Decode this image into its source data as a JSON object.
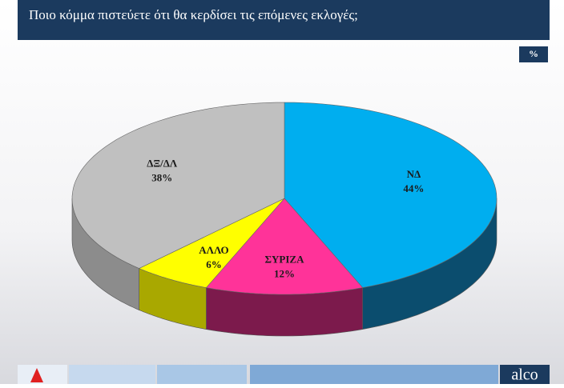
{
  "chart_data": {
    "type": "pie3d",
    "title": "Ποιο κόμμα πιστεύετε ότι θα κερδίσει τις επόμενες εκλογές;",
    "unit_badge": "%",
    "categories": [
      "ΝΔ",
      "ΣΥΡΙΖΑ",
      "ΑΛΛΟ",
      "ΔΞ/ΔΛ"
    ],
    "values": [
      44,
      12,
      6,
      38
    ],
    "value_labels": [
      "44%",
      "12%",
      "6%",
      "38%"
    ],
    "colors": [
      "#00aeef",
      "#ff3399",
      "#ffff00",
      "#c0c0c0"
    ],
    "side_colors": [
      "#0b4d6e",
      "#7c1a4c",
      "#a9a800",
      "#8c8c8c"
    ],
    "brand": "alco"
  }
}
